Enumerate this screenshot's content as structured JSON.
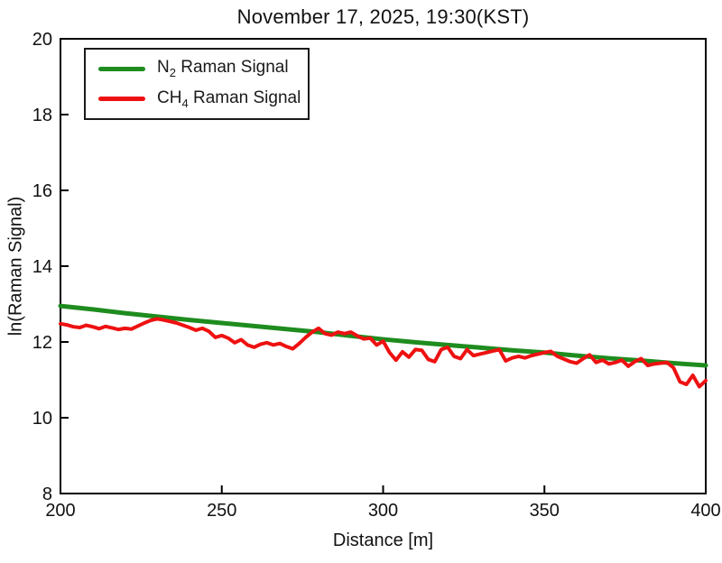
{
  "page": {
    "background": "#ffffff",
    "axis_color": "#000000",
    "text_color": "#111111"
  },
  "chart_data": {
    "type": "line",
    "title": "November 17, 2025, 19:30(KST)",
    "xlabel": "Distance [m]",
    "ylabel": "ln(Raman Signal)",
    "xlim": [
      200,
      400
    ],
    "ylim": [
      8,
      20
    ],
    "xticks": [
      200,
      250,
      300,
      350,
      400
    ],
    "yticks": [
      8,
      10,
      12,
      14,
      16,
      18,
      20
    ],
    "grid": false,
    "legend": {
      "position": "upper-left",
      "border_color": "#1a1a1a"
    },
    "series": [
      {
        "name": "N2 Raman Signal",
        "label_parts": {
          "element": "N",
          "sub": "2",
          "rest": " Raman Signal"
        },
        "color": "#1e8c1e",
        "line_width": 5,
        "x": [
          200,
          210,
          220,
          230,
          240,
          250,
          260,
          270,
          280,
          290,
          300,
          310,
          320,
          330,
          340,
          350,
          360,
          370,
          380,
          390,
          400
        ],
        "values": [
          12.95,
          12.86,
          12.76,
          12.67,
          12.58,
          12.5,
          12.42,
          12.34,
          12.26,
          12.16,
          12.07,
          11.99,
          11.92,
          11.85,
          11.78,
          11.72,
          11.64,
          11.57,
          11.51,
          11.44,
          11.38
        ]
      },
      {
        "name": "CH4 Raman Signal",
        "label_parts": {
          "element": "CH",
          "sub": "4",
          "rest": " Raman Signal"
        },
        "color": "#ee1111",
        "line_width": 4,
        "x": [
          200,
          202,
          204,
          206,
          208,
          210,
          212,
          214,
          216,
          218,
          220,
          222,
          224,
          226,
          228,
          230,
          232,
          234,
          236,
          238,
          240,
          242,
          244,
          246,
          248,
          250,
          252,
          254,
          256,
          258,
          260,
          262,
          264,
          266,
          268,
          270,
          272,
          274,
          276,
          278,
          280,
          282,
          284,
          286,
          288,
          290,
          292,
          294,
          296,
          298,
          300,
          302,
          304,
          306,
          308,
          310,
          312,
          314,
          316,
          318,
          320,
          322,
          324,
          326,
          328,
          330,
          332,
          334,
          336,
          338,
          340,
          342,
          344,
          346,
          348,
          350,
          352,
          354,
          356,
          358,
          360,
          362,
          364,
          366,
          368,
          370,
          372,
          374,
          376,
          378,
          380,
          382,
          384,
          386,
          388,
          390,
          392,
          394,
          396,
          398,
          400
        ],
        "values": [
          12.48,
          12.45,
          12.4,
          12.38,
          12.44,
          12.4,
          12.35,
          12.41,
          12.37,
          12.33,
          12.36,
          12.34,
          12.42,
          12.5,
          12.57,
          12.61,
          12.58,
          12.54,
          12.5,
          12.44,
          12.38,
          12.31,
          12.36,
          12.28,
          12.12,
          12.17,
          12.1,
          11.98,
          12.06,
          11.92,
          11.86,
          11.94,
          11.98,
          11.92,
          11.96,
          11.88,
          11.82,
          11.96,
          12.12,
          12.26,
          12.36,
          12.22,
          12.18,
          12.26,
          12.22,
          12.26,
          12.16,
          12.08,
          12.1,
          11.92,
          12.02,
          11.72,
          11.52,
          11.74,
          11.6,
          11.8,
          11.78,
          11.54,
          11.48,
          11.8,
          11.86,
          11.62,
          11.56,
          11.8,
          11.64,
          11.68,
          11.72,
          11.76,
          11.8,
          11.5,
          11.58,
          11.62,
          11.58,
          11.64,
          11.68,
          11.72,
          11.75,
          11.62,
          11.55,
          11.48,
          11.44,
          11.56,
          11.66,
          11.46,
          11.52,
          11.42,
          11.46,
          11.52,
          11.36,
          11.48,
          11.56,
          11.38,
          11.42,
          11.44,
          11.46,
          11.32,
          10.95,
          10.88,
          11.12,
          10.82,
          10.98
        ]
      }
    ]
  }
}
